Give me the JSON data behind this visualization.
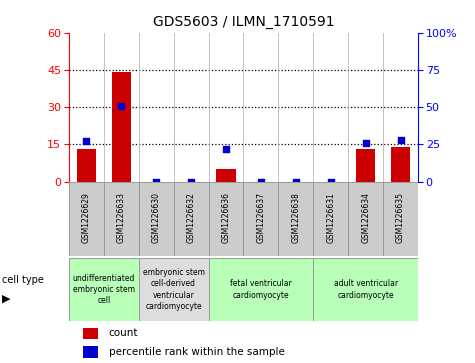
{
  "title": "GDS5603 / ILMN_1710591",
  "samples": [
    "GSM1226629",
    "GSM1226633",
    "GSM1226630",
    "GSM1226632",
    "GSM1226636",
    "GSM1226637",
    "GSM1226638",
    "GSM1226631",
    "GSM1226634",
    "GSM1226635"
  ],
  "counts": [
    13,
    44,
    0,
    0,
    5,
    0,
    0,
    0,
    13,
    14
  ],
  "percentiles": [
    27,
    51,
    0,
    0,
    22,
    0,
    0,
    0,
    26,
    28
  ],
  "ylim_left": [
    0,
    60
  ],
  "ylim_right": [
    0,
    100
  ],
  "yticks_left": [
    0,
    15,
    30,
    45,
    60
  ],
  "yticks_right": [
    0,
    25,
    50,
    75,
    100
  ],
  "ytick_labels_right": [
    "0",
    "25",
    "50",
    "75",
    "100%"
  ],
  "cell_type_groups": [
    {
      "label": "undifferentiated\nembryonic stem\ncell",
      "start": 0,
      "end": 2,
      "color": "#b8ffb8"
    },
    {
      "label": "embryonic stem\ncell-derived\nventricular\ncardiomyocyte",
      "start": 2,
      "end": 4,
      "color": "#dddddd"
    },
    {
      "label": "fetal ventricular\ncardiomyocyte",
      "start": 4,
      "end": 7,
      "color": "#b8ffb8"
    },
    {
      "label": "adult ventricular\ncardiomyocyte",
      "start": 7,
      "end": 10,
      "color": "#b8ffb8"
    }
  ],
  "bar_color": "#cc0000",
  "dot_color": "#0000cc",
  "grid_color": "#000000",
  "bg_color": "#ffffff",
  "sample_box_color": "#cccccc",
  "sample_box_edge": "#999999"
}
